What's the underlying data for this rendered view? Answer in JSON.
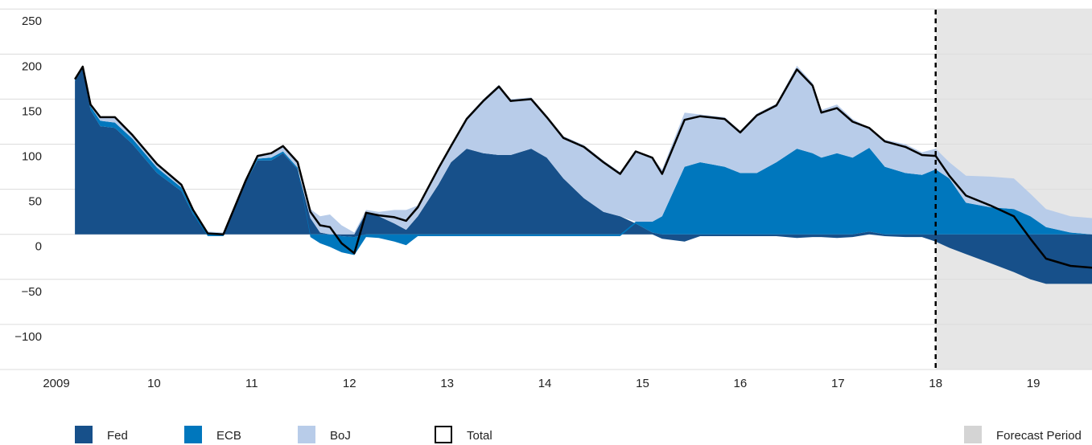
{
  "chart_data": {
    "type": "stacked-area",
    "x": [
      2009.19,
      2009.27,
      2009.35,
      2009.45,
      2009.6,
      2009.78,
      2010.03,
      2010.28,
      2010.4,
      2010.55,
      2010.71,
      2010.94,
      2011.06,
      2011.2,
      2011.32,
      2011.47,
      2011.6,
      2011.7,
      2011.8,
      2011.92,
      2012.05,
      2012.17,
      2012.3,
      2012.46,
      2012.58,
      2012.7,
      2012.91,
      2013.04,
      2013.2,
      2013.37,
      2013.53,
      2013.65,
      2013.86,
      2014.02,
      2014.19,
      2014.4,
      2014.6,
      2014.77,
      2014.93,
      2015.1,
      2015.2,
      2015.43,
      2015.59,
      2015.84,
      2016.0,
      2016.17,
      2016.37,
      2016.58,
      2016.74,
      2016.83,
      2016.99,
      2017.15,
      2017.32,
      2017.48,
      2017.69,
      2017.86,
      2018.0,
      2018.14,
      2018.31,
      2018.56,
      2018.8,
      2018.97,
      2019.13,
      2019.38,
      2019.6
    ],
    "series": [
      {
        "name": "Fed",
        "color": "#17508a",
        "values": [
          170,
          184,
          138,
          120,
          118,
          100,
          68,
          48,
          22,
          2,
          1,
          58,
          82,
          82,
          90,
          72,
          18,
          2,
          0,
          -2,
          -3,
          24,
          20,
          12,
          5,
          20,
          55,
          80,
          95,
          90,
          88,
          88,
          95,
          85,
          62,
          40,
          25,
          20,
          12,
          2,
          -5,
          -8,
          -2,
          -2,
          -2,
          -2,
          -2,
          -4,
          -3,
          -3,
          -4,
          -3,
          3,
          -2,
          -3,
          -3,
          -8,
          -15,
          -22,
          -32,
          -42,
          -50,
          -55,
          -55,
          -55
        ]
      },
      {
        "name": "ECB",
        "color": "#0077bd",
        "values": [
          2,
          2,
          4,
          6,
          6,
          6,
          6,
          4,
          3,
          -2,
          -2,
          1,
          2,
          3,
          2,
          2,
          -3,
          -10,
          -14,
          -18,
          -20,
          -3,
          -4,
          -8,
          -12,
          -2,
          -2,
          -2,
          -2,
          -2,
          -2,
          -2,
          -2,
          -2,
          -2,
          -2,
          -2,
          -2,
          2,
          12,
          20,
          75,
          80,
          75,
          68,
          68,
          80,
          95,
          90,
          85,
          90,
          85,
          93,
          75,
          68,
          66,
          72,
          62,
          35,
          30,
          28,
          20,
          8,
          2,
          0
        ]
      },
      {
        "name": "BoJ",
        "color": "#b8cce9",
        "values": [
          0,
          0,
          2,
          4,
          6,
          4,
          4,
          3,
          2,
          1,
          1,
          1,
          3,
          5,
          6,
          6,
          10,
          18,
          22,
          10,
          2,
          3,
          5,
          15,
          22,
          12,
          20,
          20,
          35,
          60,
          78,
          62,
          57,
          47,
          47,
          59,
          57,
          49,
          78,
          71,
          52,
          60,
          53,
          55,
          47,
          66,
          65,
          92,
          78,
          53,
          54,
          43,
          22,
          30,
          32,
          25,
          23,
          18,
          30,
          34,
          34,
          25,
          20,
          18,
          18
        ]
      },
      {
        "name": "Total",
        "color": "#000000",
        "line": true,
        "values": [
          172,
          186,
          144,
          130,
          130,
          110,
          78,
          55,
          27,
          1,
          0,
          60,
          87,
          90,
          98,
          80,
          25,
          10,
          8,
          -10,
          -21,
          24,
          21,
          19,
          15,
          30,
          73,
          98,
          128,
          148,
          164,
          148,
          150,
          130,
          107,
          97,
          80,
          67,
          92,
          85,
          67,
          127,
          131,
          128,
          113,
          132,
          143,
          183,
          165,
          135,
          140,
          125,
          118,
          103,
          97,
          88,
          87,
          65,
          43,
          32,
          20,
          -5,
          -27,
          -35,
          -37
        ]
      }
    ],
    "xlim": [
      2009,
      2019.6
    ],
    "xticks": [
      2009,
      {
        "value": 2010,
        "label": "10"
      },
      {
        "value": 2011,
        "label": "11"
      },
      {
        "value": 2012,
        "label": "12"
      },
      {
        "value": 2013,
        "label": "13"
      },
      {
        "value": 2014,
        "label": "14"
      },
      {
        "value": 2015,
        "label": "15"
      },
      {
        "value": 2016,
        "label": "16"
      },
      {
        "value": 2017,
        "label": "17"
      },
      {
        "value": 2018,
        "label": "18"
      },
      {
        "value": 2019,
        "label": "19"
      }
    ],
    "ylim": [
      -150,
      260
    ],
    "yticks": [
      250,
      200,
      150,
      100,
      50,
      0,
      {
        "value": -50,
        "label": "−50"
      },
      {
        "value": -100,
        "label": "−100"
      }
    ],
    "grid": true,
    "forecast": {
      "start": 2018,
      "label": "Forecast Period",
      "color": "#e6e6e6"
    }
  }
}
